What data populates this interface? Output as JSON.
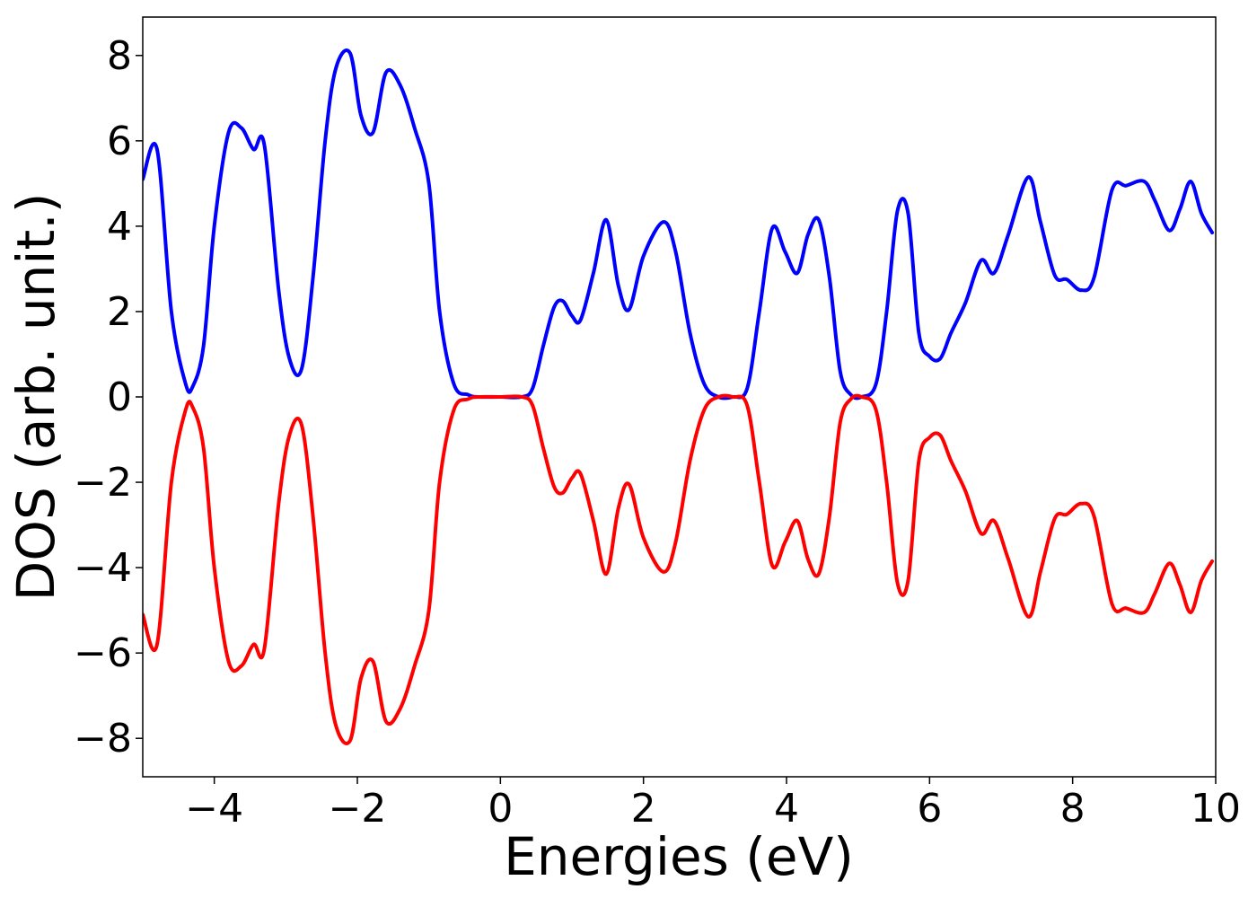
{
  "chart_data": {
    "type": "line",
    "title": "",
    "xlabel": "Energies (eV)",
    "ylabel": "DOS (arb. unit.)",
    "xlim": [
      -5,
      10
    ],
    "ylim": [
      -8.9,
      8.9
    ],
    "xticks": [
      -4,
      -2,
      0,
      2,
      4,
      6,
      8,
      10
    ],
    "xtick_labels": [
      "−4",
      "−2",
      "0",
      "2",
      "4",
      "6",
      "8",
      "10"
    ],
    "yticks": [
      8,
      6,
      4,
      2,
      0,
      -2,
      -4,
      -6,
      -8
    ],
    "ytick_labels": [
      "8",
      "6",
      "4",
      "2",
      "0",
      "−2",
      "−4",
      "−6",
      "−8"
    ],
    "grid": false,
    "legend": "none",
    "series": [
      {
        "color": "#0000ff",
        "x": [
          -5.0,
          -4.8,
          -4.6,
          -4.4,
          -4.3,
          -4.15,
          -4.0,
          -3.8,
          -3.62,
          -3.45,
          -3.3,
          -3.1,
          -2.95,
          -2.78,
          -2.62,
          -2.45,
          -2.3,
          -2.1,
          -1.95,
          -1.78,
          -1.6,
          -1.4,
          -1.2,
          -1.0,
          -0.85,
          -0.65,
          -0.45,
          -0.3,
          0.0,
          0.3,
          0.45,
          0.6,
          0.75,
          0.87,
          1.0,
          1.12,
          1.3,
          1.48,
          1.65,
          1.8,
          2.0,
          2.28,
          2.45,
          2.65,
          2.85,
          3.05,
          3.25,
          3.45,
          3.62,
          3.8,
          3.98,
          4.15,
          4.3,
          4.45,
          4.6,
          4.75,
          4.9,
          5.05,
          5.25,
          5.4,
          5.55,
          5.7,
          5.85,
          6.0,
          6.15,
          6.3,
          6.5,
          6.72,
          6.9,
          7.1,
          7.38,
          7.55,
          7.75,
          7.92,
          8.12,
          8.3,
          8.55,
          8.75,
          9.0,
          9.15,
          9.35,
          9.5,
          9.65,
          9.8,
          9.95
        ],
        "y": [
          5.1,
          5.8,
          2.0,
          0.3,
          0.25,
          1.2,
          4.0,
          6.2,
          6.3,
          5.8,
          5.9,
          2.5,
          0.9,
          0.65,
          2.8,
          6.0,
          7.7,
          8.05,
          6.6,
          6.2,
          7.6,
          7.3,
          6.3,
          5.0,
          2.0,
          0.3,
          0.05,
          0.0,
          0.0,
          0.0,
          0.2,
          1.2,
          2.1,
          2.25,
          1.9,
          1.8,
          2.9,
          4.15,
          2.6,
          2.05,
          3.3,
          4.1,
          3.4,
          1.5,
          0.3,
          0.0,
          0.0,
          0.2,
          2.0,
          3.95,
          3.4,
          2.9,
          3.8,
          4.15,
          2.8,
          0.6,
          0.05,
          0.0,
          0.3,
          2.0,
          4.35,
          4.3,
          1.5,
          0.95,
          0.9,
          1.5,
          2.2,
          3.2,
          2.9,
          3.8,
          5.15,
          4.1,
          2.85,
          2.75,
          2.5,
          2.8,
          4.85,
          4.95,
          5.05,
          4.6,
          3.9,
          4.4,
          5.05,
          4.3,
          3.85
        ]
      },
      {
        "color": "#ff0000",
        "x": [
          -5.0,
          -4.8,
          -4.6,
          -4.4,
          -4.3,
          -4.15,
          -4.0,
          -3.8,
          -3.62,
          -3.45,
          -3.3,
          -3.1,
          -2.95,
          -2.78,
          -2.62,
          -2.45,
          -2.3,
          -2.1,
          -1.95,
          -1.78,
          -1.6,
          -1.4,
          -1.2,
          -1.0,
          -0.85,
          -0.65,
          -0.45,
          -0.3,
          0.0,
          0.3,
          0.45,
          0.6,
          0.75,
          0.87,
          1.0,
          1.12,
          1.3,
          1.48,
          1.65,
          1.8,
          2.0,
          2.28,
          2.45,
          2.65,
          2.85,
          3.05,
          3.25,
          3.45,
          3.62,
          3.8,
          3.98,
          4.15,
          4.3,
          4.45,
          4.6,
          4.75,
          4.9,
          5.05,
          5.25,
          5.4,
          5.55,
          5.7,
          5.85,
          6.0,
          6.15,
          6.3,
          6.5,
          6.72,
          6.9,
          7.1,
          7.38,
          7.55,
          7.75,
          7.92,
          8.12,
          8.3,
          8.55,
          8.75,
          9.0,
          9.15,
          9.35,
          9.5,
          9.65,
          9.8,
          9.95
        ],
        "y": [
          -5.1,
          -5.8,
          -2.0,
          -0.3,
          -0.25,
          -1.2,
          -4.0,
          -6.2,
          -6.3,
          -5.8,
          -5.9,
          -2.5,
          -0.9,
          -0.65,
          -2.8,
          -6.0,
          -7.7,
          -8.05,
          -6.6,
          -6.2,
          -7.6,
          -7.3,
          -6.3,
          -5.0,
          -2.0,
          -0.3,
          -0.05,
          0.0,
          0.0,
          0.0,
          -0.2,
          -1.2,
          -2.1,
          -2.25,
          -1.9,
          -1.8,
          -2.9,
          -4.15,
          -2.6,
          -2.05,
          -3.3,
          -4.1,
          -3.4,
          -1.5,
          -0.3,
          0.0,
          0.0,
          -0.2,
          -2.0,
          -3.95,
          -3.4,
          -2.9,
          -3.8,
          -4.15,
          -2.8,
          -0.6,
          -0.05,
          0.0,
          -0.3,
          -2.0,
          -4.35,
          -4.3,
          -1.5,
          -0.95,
          -0.9,
          -1.5,
          -2.2,
          -3.2,
          -2.9,
          -3.8,
          -5.15,
          -4.1,
          -2.85,
          -2.75,
          -2.5,
          -2.8,
          -4.85,
          -4.95,
          -5.05,
          -4.6,
          -3.9,
          -4.4,
          -5.05,
          -4.3,
          -3.85
        ]
      }
    ]
  }
}
